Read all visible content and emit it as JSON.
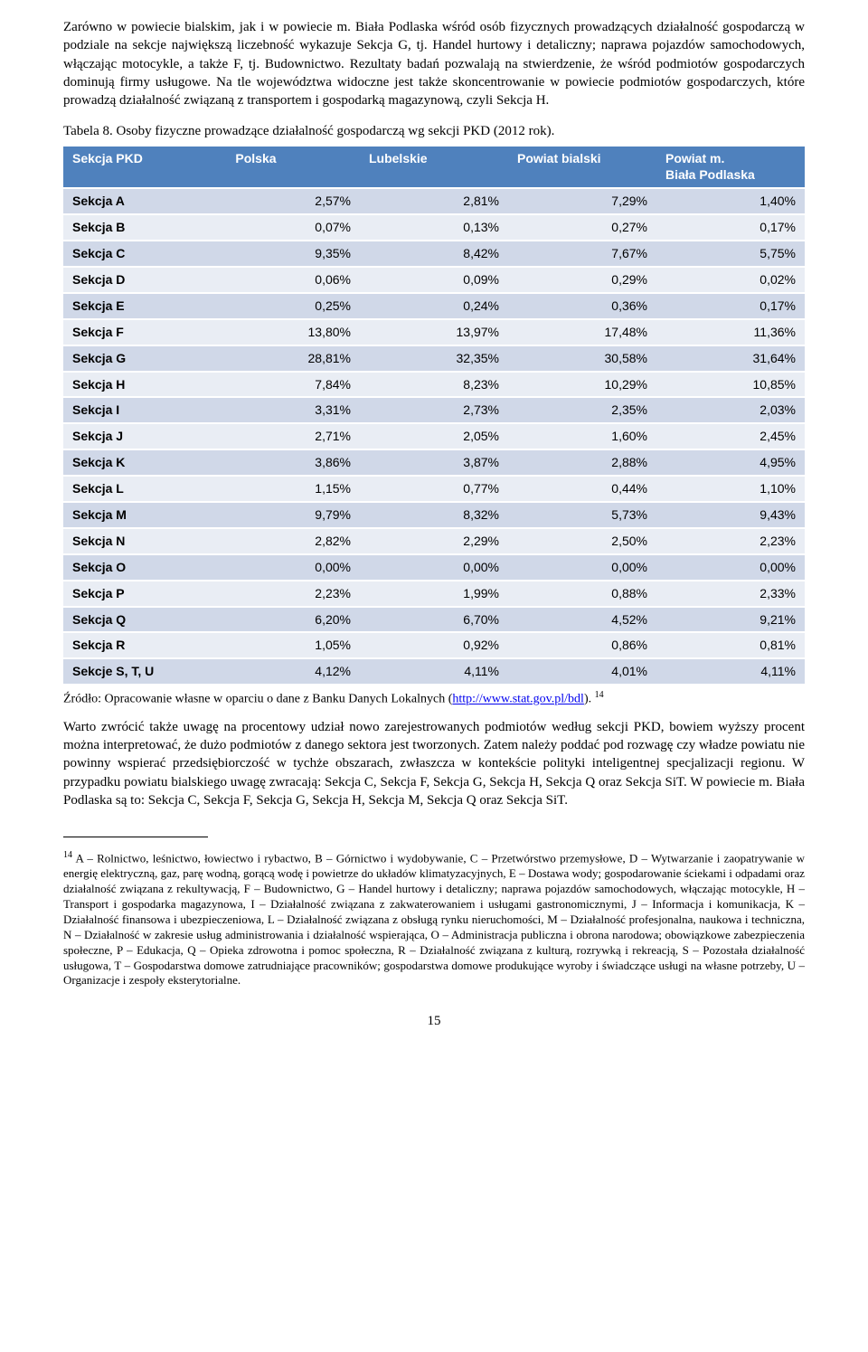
{
  "paragraph1": "Zarówno w powiecie bialskim, jak i w powiecie m. Biała Podlaska wśród osób fizycznych prowadzących działalność gospodarczą w podziale na sekcje największą liczebność wykazuje Sekcja G, tj. Handel hurtowy i detaliczny; naprawa pojazdów samochodowych, włączając motocykle, a także F, tj. Budownictwo. Rezultaty badań pozwalają na stwierdzenie, że wśród podmiotów gospodarczych dominują firmy usługowe. Na tle województwa widoczne jest także skoncentrowanie w powiecie podmiotów gospodarczych, które prowadzą działalność związaną z transportem i gospodarką magazynową, czyli Sekcja H.",
  "caption": "Tabela 8. Osoby fizyczne prowadzące działalność gospodarczą wg sekcji PKD (2012 rok).",
  "table": {
    "columns": [
      "Sekcja PKD",
      "Polska",
      "Lubelskie",
      "Powiat bialski",
      "Powiat m. Biała Podlaska"
    ],
    "col_widths": [
      "22%",
      "18%",
      "20%",
      "20%",
      "20%"
    ],
    "header_bg": "#4f81bd",
    "header_color": "#ffffff",
    "row_bg_odd": "#d0d8e8",
    "row_bg_even": "#e9edf4",
    "rows": [
      [
        "Sekcja A",
        "2,57%",
        "2,81%",
        "7,29%",
        "1,40%"
      ],
      [
        "Sekcja B",
        "0,07%",
        "0,13%",
        "0,27%",
        "0,17%"
      ],
      [
        "Sekcja C",
        "9,35%",
        "8,42%",
        "7,67%",
        "5,75%"
      ],
      [
        "Sekcja D",
        "0,06%",
        "0,09%",
        "0,29%",
        "0,02%"
      ],
      [
        "Sekcja E",
        "0,25%",
        "0,24%",
        "0,36%",
        "0,17%"
      ],
      [
        "Sekcja F",
        "13,80%",
        "13,97%",
        "17,48%",
        "11,36%"
      ],
      [
        "Sekcja G",
        "28,81%",
        "32,35%",
        "30,58%",
        "31,64%"
      ],
      [
        "Sekcja H",
        "7,84%",
        "8,23%",
        "10,29%",
        "10,85%"
      ],
      [
        "Sekcja I",
        "3,31%",
        "2,73%",
        "2,35%",
        "2,03%"
      ],
      [
        "Sekcja J",
        "2,71%",
        "2,05%",
        "1,60%",
        "2,45%"
      ],
      [
        "Sekcja K",
        "3,86%",
        "3,87%",
        "2,88%",
        "4,95%"
      ],
      [
        "Sekcja L",
        "1,15%",
        "0,77%",
        "0,44%",
        "1,10%"
      ],
      [
        "Sekcja M",
        "9,79%",
        "8,32%",
        "5,73%",
        "9,43%"
      ],
      [
        "Sekcja N",
        "2,82%",
        "2,29%",
        "2,50%",
        "2,23%"
      ],
      [
        "Sekcja O",
        "0,00%",
        "0,00%",
        "0,00%",
        "0,00%"
      ],
      [
        "Sekcja P",
        "2,23%",
        "1,99%",
        "0,88%",
        "2,33%"
      ],
      [
        "Sekcja Q",
        "6,20%",
        "6,70%",
        "4,52%",
        "9,21%"
      ],
      [
        "Sekcja R",
        "1,05%",
        "0,92%",
        "0,86%",
        "0,81%"
      ],
      [
        "Sekcje S, T, U",
        "4,12%",
        "4,11%",
        "4,01%",
        "4,11%"
      ]
    ]
  },
  "source_prefix": "Źródło: Opracowanie własne w oparciu o dane z Banku Danych Lokalnych (",
  "source_link_text": "http://www.stat.gov.pl/bdl",
  "source_suffix": "). ",
  "source_fn_ref": "14",
  "paragraph2": "Warto zwrócić także uwagę na procentowy udział nowo zarejestrowanych podmiotów według sekcji PKD, bowiem wyższy procent można interpretować, że dużo podmiotów z danego sektora jest tworzonych. Zatem należy poddać pod rozwagę czy władze powiatu nie powinny wspierać przedsiębiorczość w tychże obszarach, zwłaszcza w kontekście polityki inteligentnej specjalizacji regionu. W przypadku powiatu bialskiego uwagę zwracają: Sekcja C, Sekcja F, Sekcja G, Sekcja H, Sekcja Q oraz Sekcja SiT. W powiecie m. Biała Podlaska są to: Sekcja C, Sekcja F, Sekcja G, Sekcja H, Sekcja M, Sekcja Q oraz Sekcja SiT.",
  "footnote_ref": "14",
  "footnote_text": " A – Rolnictwo, leśnictwo, łowiectwo i rybactwo, B – Górnictwo i wydobywanie, C – Przetwórstwo przemysłowe, D – Wytwarzanie i zaopatrywanie  w energię elektryczną, gaz, parę wodną, gorącą wodę i powietrze do układów klimatyzacyjnych, E – Dostawa wody; gospodarowanie ściekami i odpadami oraz działalność związana z rekultywacją, F – Budownictwo, G – Handel hurtowy i detaliczny; naprawa pojazdów samochodowych, włączając motocykle, H – Transport i gospodarka magazynowa, I – Działalność związana z zakwaterowaniem i usługami gastronomicznymi, J – Informacja i komunikacja, K – Działalność finansowa i ubezpieczeniowa, L – Działalność związana z obsługą rynku nieruchomości, M – Działalność profesjonalna, naukowa i techniczna, N – Działalność w zakresie usług administrowania i działalność wspierająca, O – Administracja publiczna i obrona narodowa; obowiązkowe zabezpieczenia społeczne, P – Edukacja, Q – Opieka zdrowotna i pomoc społeczna, R – Działalność związana z kulturą, rozrywką i rekreacją, S – Pozostała działalność usługowa, T – Gospodarstwa domowe zatrudniające pracowników; gospodarstwa domowe produkujące wyroby i świadczące usługi na własne potrzeby, U – Organizacje i zespoły eksterytorialne.",
  "page_number": "15"
}
